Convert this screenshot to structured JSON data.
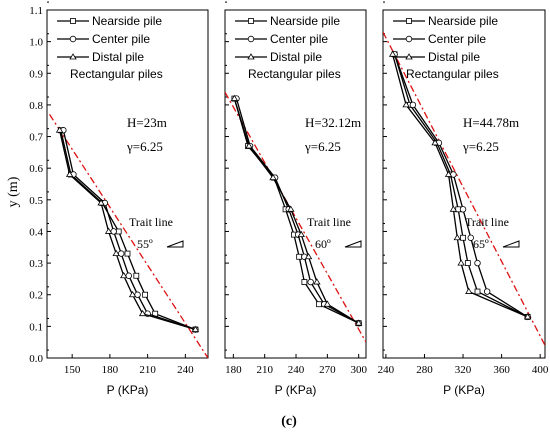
{
  "chart_data": {
    "type": "line",
    "ylabel": "y (m)",
    "ylim": [
      0.0,
      1.1
    ],
    "yticks": [
      "0.0",
      "0.1",
      "0.2",
      "0.3",
      "0.4",
      "0.5",
      "0.6",
      "0.7",
      "0.8",
      "0.9",
      "1.0",
      "1.1"
    ],
    "caption": "(c)",
    "legend_entries": [
      "Nearside pile",
      "Center pile",
      "Distal pile"
    ],
    "subtitle": "Rectangular piles",
    "trait_label": "Trait line",
    "colors": {
      "series": "#000000",
      "trait": "#dd1111"
    },
    "panels": [
      {
        "xlabel": "P (KPa)",
        "xlim": [
          130,
          258
        ],
        "xticks": [
          150,
          180,
          210,
          240
        ],
        "H_label": "H=23m",
        "gamma_label": "γ=6.25",
        "angle_label": "55º",
        "trait_line": [
          [
            132,
            0.77
          ],
          [
            258,
            0.0
          ]
        ],
        "series": [
          {
            "name": "Nearside pile",
            "x": [
              141,
              149,
              174,
              187,
              194,
              201,
              208,
              216,
              248
            ],
            "y": [
              0.72,
              0.58,
              0.49,
              0.4,
              0.33,
              0.26,
              0.2,
              0.14,
              0.09
            ]
          },
          {
            "name": "Center pile",
            "x": [
              143,
              151,
              176,
              183,
              189,
              195,
              202,
              210,
              248
            ],
            "y": [
              0.72,
              0.58,
              0.49,
              0.4,
              0.33,
              0.26,
              0.2,
              0.14,
              0.09
            ]
          },
          {
            "name": "Distal pile",
            "x": [
              140,
              148,
              173,
              179,
              185,
              191,
              198,
              206,
              248
            ],
            "y": [
              0.72,
              0.58,
              0.49,
              0.4,
              0.33,
              0.26,
              0.2,
              0.14,
              0.09
            ]
          }
        ]
      },
      {
        "xlabel": "P (KPa)",
        "xlim": [
          172,
          307
        ],
        "xticks": [
          180,
          210,
          240,
          270,
          300
        ],
        "H_label": "H=32.12m",
        "gamma_label": "γ=6.25",
        "angle_label": "60º",
        "trait_line": [
          [
            172,
            0.84
          ],
          [
            307,
            0.05
          ]
        ],
        "series": [
          {
            "name": "Nearside pile",
            "x": [
              181,
              194,
              219,
              230,
              238,
              243,
              248,
              262,
              300
            ],
            "y": [
              0.82,
              0.67,
              0.57,
              0.47,
              0.39,
              0.32,
              0.24,
              0.17,
              0.11
            ]
          },
          {
            "name": "Center pile",
            "x": [
              183,
              196,
              220,
              233,
              242,
              248,
              254,
              267,
              300
            ],
            "y": [
              0.82,
              0.67,
              0.57,
              0.47,
              0.39,
              0.32,
              0.24,
              0.17,
              0.11
            ]
          },
          {
            "name": "Distal pile",
            "x": [
              181,
              195,
              218,
              235,
              245,
              252,
              260,
              270,
              300
            ],
            "y": [
              0.82,
              0.67,
              0.57,
              0.47,
              0.39,
              0.32,
              0.24,
              0.17,
              0.11
            ]
          }
        ]
      },
      {
        "xlabel": "P (KPa)",
        "xlim": [
          237,
          405
        ],
        "xticks": [
          240,
          280,
          320,
          360,
          400
        ],
        "H_label": "H=44.78m",
        "gamma_label": "γ=6.25",
        "angle_label": "65º",
        "trait_line": [
          [
            237,
            1.03
          ],
          [
            405,
            0.04
          ]
        ],
        "series": [
          {
            "name": "Nearside pile",
            "x": [
              249,
              265,
              293,
              307,
              315,
              320,
              325,
              335,
              387
            ],
            "y": [
              0.96,
              0.8,
              0.68,
              0.58,
              0.47,
              0.38,
              0.3,
              0.21,
              0.13
            ]
          },
          {
            "name": "Center pile",
            "x": [
              249,
              268,
              295,
              310,
              320,
              328,
              335,
              345,
              387
            ],
            "y": [
              0.96,
              0.8,
              0.68,
              0.58,
              0.47,
              0.38,
              0.3,
              0.21,
              0.13
            ]
          },
          {
            "name": "Distal pile",
            "x": [
              247,
              261,
              291,
              305,
              310,
              314,
              318,
              326,
              387
            ],
            "y": [
              0.96,
              0.8,
              0.68,
              0.58,
              0.47,
              0.38,
              0.3,
              0.21,
              0.13
            ]
          }
        ]
      }
    ]
  }
}
